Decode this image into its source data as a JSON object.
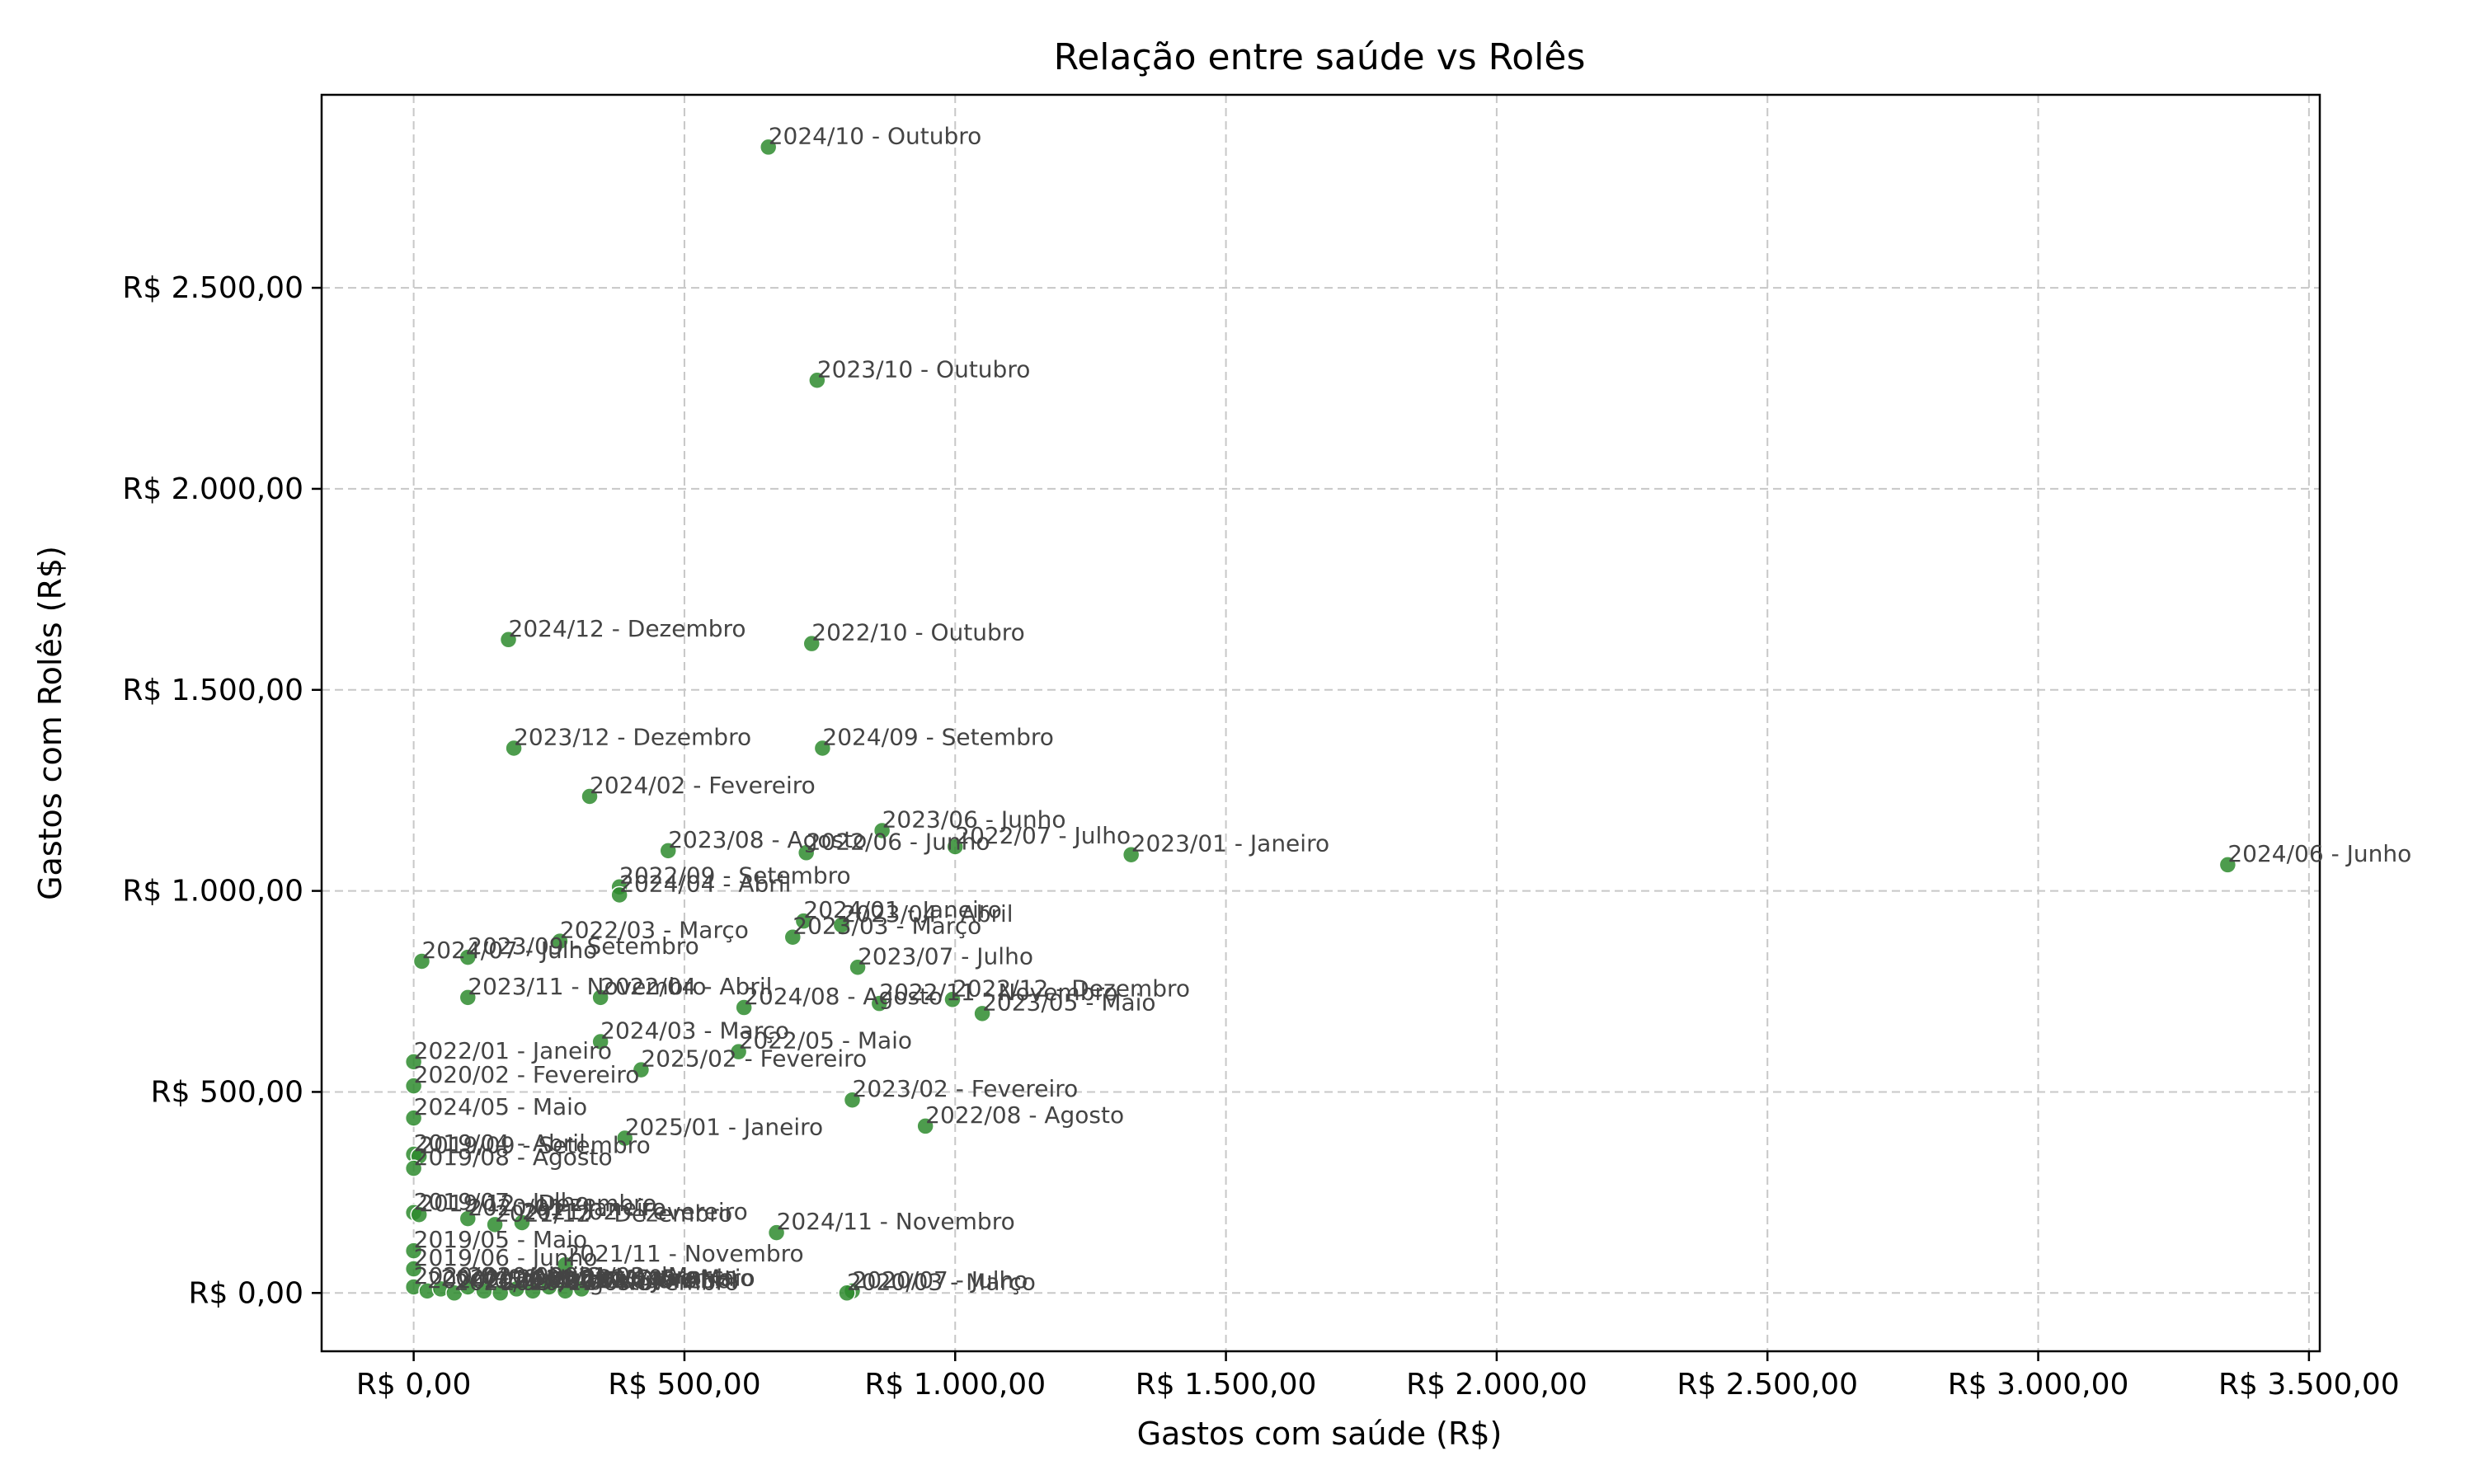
{
  "chart_data": {
    "type": "scatter",
    "title": "Relação entre saúde vs Rolês",
    "xlabel": "Gastos com saúde (R$)",
    "ylabel": "Gastos com Rolês (R$)",
    "xlim": [
      -170,
      3520
    ],
    "ylim": [
      -145,
      2980
    ],
    "xticks": [
      {
        "value": 0,
        "label": "R$ 0,00"
      },
      {
        "value": 500,
        "label": "R$ 500,00"
      },
      {
        "value": 1000,
        "label": "R$ 1.000,00"
      },
      {
        "value": 1500,
        "label": "R$ 1.500,00"
      },
      {
        "value": 2000,
        "label": "R$ 2.000,00"
      },
      {
        "value": 2500,
        "label": "R$ 2.500,00"
      },
      {
        "value": 3000,
        "label": "R$ 3.000,00"
      },
      {
        "value": 3500,
        "label": "R$ 3.500,00"
      }
    ],
    "yticks": [
      {
        "value": 0,
        "label": "R$ 0,00"
      },
      {
        "value": 500,
        "label": "R$ 500,00"
      },
      {
        "value": 1000,
        "label": "R$ 1.000,00"
      },
      {
        "value": 1500,
        "label": "R$ 1.500,00"
      },
      {
        "value": 2000,
        "label": "R$ 2.000,00"
      },
      {
        "value": 2500,
        "label": "R$ 2.500,00"
      }
    ],
    "grid": true,
    "point_color": "#2e8b2e",
    "points": [
      {
        "label": "2024/10 - Outubro",
        "x": 655,
        "y": 2850
      },
      {
        "label": "2023/10 - Outubro",
        "x": 745,
        "y": 2270
      },
      {
        "label": "2024/12 - Dezembro",
        "x": 175,
        "y": 1625
      },
      {
        "label": "2022/10 - Outubro",
        "x": 735,
        "y": 1615
      },
      {
        "label": "2023/12 - Dezembro",
        "x": 185,
        "y": 1355
      },
      {
        "label": "2024/09 - Setembro",
        "x": 755,
        "y": 1355
      },
      {
        "label": "2024/02 - Fevereiro",
        "x": 325,
        "y": 1235
      },
      {
        "label": "2023/06 - Junho",
        "x": 865,
        "y": 1150
      },
      {
        "label": "2022/07 - Julho",
        "x": 1000,
        "y": 1110
      },
      {
        "label": "2023/08 - Agosto",
        "x": 470,
        "y": 1100
      },
      {
        "label": "2022/06 - Junho",
        "x": 725,
        "y": 1095
      },
      {
        "label": "2023/01 - Janeiro",
        "x": 1325,
        "y": 1090
      },
      {
        "label": "2024/06 - Junho",
        "x": 3350,
        "y": 1065
      },
      {
        "label": "2022/09 - Setembro",
        "x": 380,
        "y": 1010
      },
      {
        "label": "2024/04 - Abril",
        "x": 380,
        "y": 990
      },
      {
        "label": "2024/01 - Janeiro",
        "x": 720,
        "y": 925
      },
      {
        "label": "2023/04 - Abril",
        "x": 790,
        "y": 915
      },
      {
        "label": "2022/03 - Março",
        "x": 270,
        "y": 875
      },
      {
        "label": "2023/03 - Março",
        "x": 700,
        "y": 885
      },
      {
        "label": "2023/09 - Setembro",
        "x": 100,
        "y": 835
      },
      {
        "label": "2024/07 - Julho",
        "x": 15,
        "y": 825
      },
      {
        "label": "2023/07 - Julho",
        "x": 820,
        "y": 810
      },
      {
        "label": "2023/11 - Novembro",
        "x": 100,
        "y": 735
      },
      {
        "label": "2022/04 - Abril",
        "x": 345,
        "y": 735
      },
      {
        "label": "2022/12 - Dezembro",
        "x": 995,
        "y": 730
      },
      {
        "label": "2022/11 - Novembro",
        "x": 860,
        "y": 720
      },
      {
        "label": "2024/08 - Agosto",
        "x": 610,
        "y": 710
      },
      {
        "label": "2023/05 - Maio",
        "x": 1050,
        "y": 695
      },
      {
        "label": "2024/03 - Março",
        "x": 345,
        "y": 625
      },
      {
        "label": "2022/05 - Maio",
        "x": 600,
        "y": 600
      },
      {
        "label": "2022/01 - Janeiro",
        "x": 0,
        "y": 575
      },
      {
        "label": "2025/02 - Fevereiro",
        "x": 420,
        "y": 555
      },
      {
        "label": "2020/02 - Fevereiro",
        "x": 0,
        "y": 515
      },
      {
        "label": "2023/02 - Fevereiro",
        "x": 810,
        "y": 480
      },
      {
        "label": "2024/05 - Maio",
        "x": 0,
        "y": 435
      },
      {
        "label": "2022/08 - Agosto",
        "x": 945,
        "y": 415
      },
      {
        "label": "2025/01 - Janeiro",
        "x": 390,
        "y": 385
      },
      {
        "label": "2019/04 - Abril",
        "x": 0,
        "y": 345
      },
      {
        "label": "2019/09 - Setembro",
        "x": 10,
        "y": 340
      },
      {
        "label": "2019/08 - Agosto",
        "x": 0,
        "y": 310
      },
      {
        "label": "2019/07 - Julho",
        "x": 0,
        "y": 200
      },
      {
        "label": "2019/12 - Dezembro",
        "x": 10,
        "y": 195
      },
      {
        "label": "2020/01 - Janeiro",
        "x": 100,
        "y": 185
      },
      {
        "label": "2021/02 - Fevereiro",
        "x": 200,
        "y": 175
      },
      {
        "label": "2021/12 - Dezembro",
        "x": 150,
        "y": 170
      },
      {
        "label": "2024/11 - Novembro",
        "x": 670,
        "y": 150
      },
      {
        "label": "2019/05 - Maio",
        "x": 0,
        "y": 105
      },
      {
        "label": "2021/11 - Novembro",
        "x": 280,
        "y": 70
      },
      {
        "label": "2019/06 - Junho",
        "x": 0,
        "y": 60
      },
      {
        "label": "2020/07 - Julho",
        "x": 810,
        "y": 5
      },
      {
        "label": "2020/03 - Março",
        "x": 800,
        "y": 0
      },
      {
        "label": "2020/04 - Abril",
        "x": 0,
        "y": 15
      },
      {
        "label": "2020/05 - Maio",
        "x": 25,
        "y": 5
      },
      {
        "label": "2020/06 - Junho",
        "x": 50,
        "y": 10
      },
      {
        "label": "2020/08 - Agosto",
        "x": 75,
        "y": 0
      },
      {
        "label": "2020/09 - Setembro",
        "x": 100,
        "y": 15
      },
      {
        "label": "2020/10 - Outubro",
        "x": 130,
        "y": 5
      },
      {
        "label": "2020/11 - Novembro",
        "x": 160,
        "y": 0
      },
      {
        "label": "2020/12 - Dezembro",
        "x": 190,
        "y": 10
      },
      {
        "label": "2021/01 - Janeiro",
        "x": 220,
        "y": 5
      },
      {
        "label": "2021/03 - Março",
        "x": 250,
        "y": 15
      },
      {
        "label": "2021/04 - Abril",
        "x": 280,
        "y": 5
      },
      {
        "label": "2021/05 - Maio",
        "x": 310,
        "y": 10
      }
    ]
  }
}
